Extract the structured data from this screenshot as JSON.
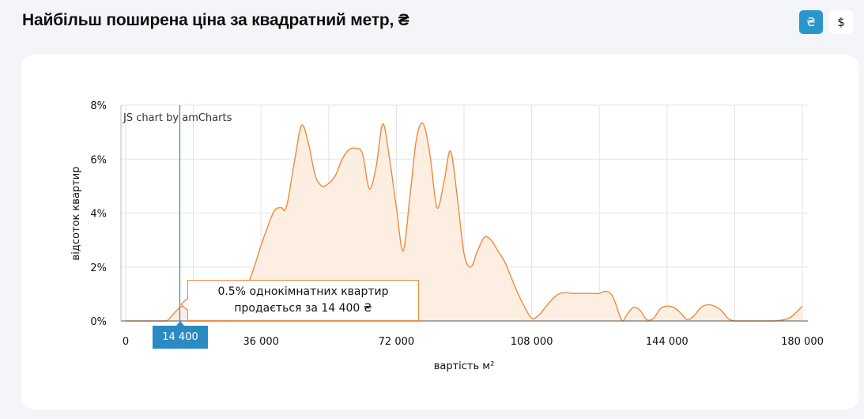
{
  "header": {
    "title": "Найбільш поширена ціна за квадратний метр, ₴",
    "currency_buttons": [
      {
        "label": "₴",
        "active": true
      },
      {
        "label": "$",
        "active": false
      }
    ]
  },
  "chart_data": {
    "type": "area",
    "credit": "JS chart by amCharts",
    "xlabel": "вартість м²",
    "ylabel": "відсоток квартир",
    "xlim": [
      0,
      180000
    ],
    "ylim": [
      0,
      8
    ],
    "x_ticks": [
      {
        "value": 0,
        "label": "0"
      },
      {
        "value": 36000,
        "label": "36 000"
      },
      {
        "value": 72000,
        "label": "72 000"
      },
      {
        "value": 108000,
        "label": "108 000"
      },
      {
        "value": 144000,
        "label": "144 000"
      },
      {
        "value": 180000,
        "label": "180 000"
      }
    ],
    "y_ticks": [
      {
        "value": 0,
        "label": "0%"
      },
      {
        "value": 2,
        "label": "2%"
      },
      {
        "value": 4,
        "label": "4%"
      },
      {
        "value": 6,
        "label": "6%"
      },
      {
        "value": 8,
        "label": "8%"
      }
    ],
    "x_unit_step": 1800,
    "series": [
      {
        "color": "#f08a3e",
        "fill": "#fdeee2",
        "points": [
          [
            0,
            0
          ],
          [
            3600,
            0
          ],
          [
            7200,
            0
          ],
          [
            10800,
            0
          ],
          [
            12600,
            0.25
          ],
          [
            14400,
            0.5
          ],
          [
            15300,
            0.55
          ],
          [
            16200,
            0.5
          ],
          [
            18000,
            0.55
          ],
          [
            19800,
            0.55
          ],
          [
            21600,
            0.4
          ],
          [
            23400,
            0.2
          ],
          [
            25200,
            0.1
          ],
          [
            27000,
            0
          ],
          [
            28800,
            0.2
          ],
          [
            30600,
            0.6
          ],
          [
            32400,
            1.3
          ],
          [
            34200,
            2.0
          ],
          [
            36000,
            2.8
          ],
          [
            37800,
            3.5
          ],
          [
            39600,
            4.1
          ],
          [
            41400,
            4.2
          ],
          [
            42300,
            4.1
          ],
          [
            43200,
            4.5
          ],
          [
            45000,
            6.0
          ],
          [
            46800,
            7.25
          ],
          [
            48600,
            6.6
          ],
          [
            50400,
            5.4
          ],
          [
            52200,
            5.0
          ],
          [
            54000,
            5.1
          ],
          [
            55800,
            5.4
          ],
          [
            57600,
            6.0
          ],
          [
            59400,
            6.35
          ],
          [
            61200,
            6.4
          ],
          [
            63000,
            6.2
          ],
          [
            64800,
            4.9
          ],
          [
            66600,
            5.7
          ],
          [
            68400,
            7.3
          ],
          [
            70200,
            6.0
          ],
          [
            72000,
            4.2
          ],
          [
            73800,
            2.6
          ],
          [
            75600,
            4.6
          ],
          [
            77400,
            6.8
          ],
          [
            79200,
            7.3
          ],
          [
            81000,
            6.1
          ],
          [
            82800,
            4.2
          ],
          [
            84600,
            5.1
          ],
          [
            86400,
            6.3
          ],
          [
            88200,
            4.6
          ],
          [
            90000,
            2.5
          ],
          [
            91800,
            2.0
          ],
          [
            93600,
            2.6
          ],
          [
            95400,
            3.1
          ],
          [
            97200,
            3.0
          ],
          [
            99000,
            2.6
          ],
          [
            100800,
            2.2
          ],
          [
            102600,
            1.6
          ],
          [
            104400,
            1.0
          ],
          [
            106200,
            0.5
          ],
          [
            108000,
            0.1
          ],
          [
            109800,
            0.2
          ],
          [
            111600,
            0.5
          ],
          [
            113400,
            0.8
          ],
          [
            115200,
            1.0
          ],
          [
            117000,
            1.05
          ],
          [
            118800,
            1.02
          ],
          [
            120600,
            1.02
          ],
          [
            122400,
            1.02
          ],
          [
            124200,
            1.02
          ],
          [
            126000,
            1.02
          ],
          [
            127800,
            1.1
          ],
          [
            129600,
            0.9
          ],
          [
            131400,
            0.2
          ],
          [
            132300,
            0
          ],
          [
            133200,
            0.2
          ],
          [
            135000,
            0.5
          ],
          [
            136800,
            0.4
          ],
          [
            138600,
            0.05
          ],
          [
            140400,
            0.1
          ],
          [
            142200,
            0.45
          ],
          [
            144000,
            0.55
          ],
          [
            145800,
            0.5
          ],
          [
            147600,
            0.3
          ],
          [
            149400,
            0.05
          ],
          [
            151200,
            0.2
          ],
          [
            153000,
            0.5
          ],
          [
            154800,
            0.6
          ],
          [
            156600,
            0.55
          ],
          [
            158400,
            0.4
          ],
          [
            160200,
            0.1
          ],
          [
            162000,
            0
          ],
          [
            165600,
            0
          ],
          [
            169200,
            0
          ],
          [
            172800,
            0
          ],
          [
            176400,
            0.1
          ],
          [
            178200,
            0.3
          ],
          [
            180000,
            0.55
          ]
        ]
      }
    ],
    "cursor": {
      "x": 14400,
      "label": "14 400",
      "tooltip_line1": "0.5% однокімнатних квартир",
      "tooltip_line2": "продається за 14 400 ₴"
    }
  }
}
